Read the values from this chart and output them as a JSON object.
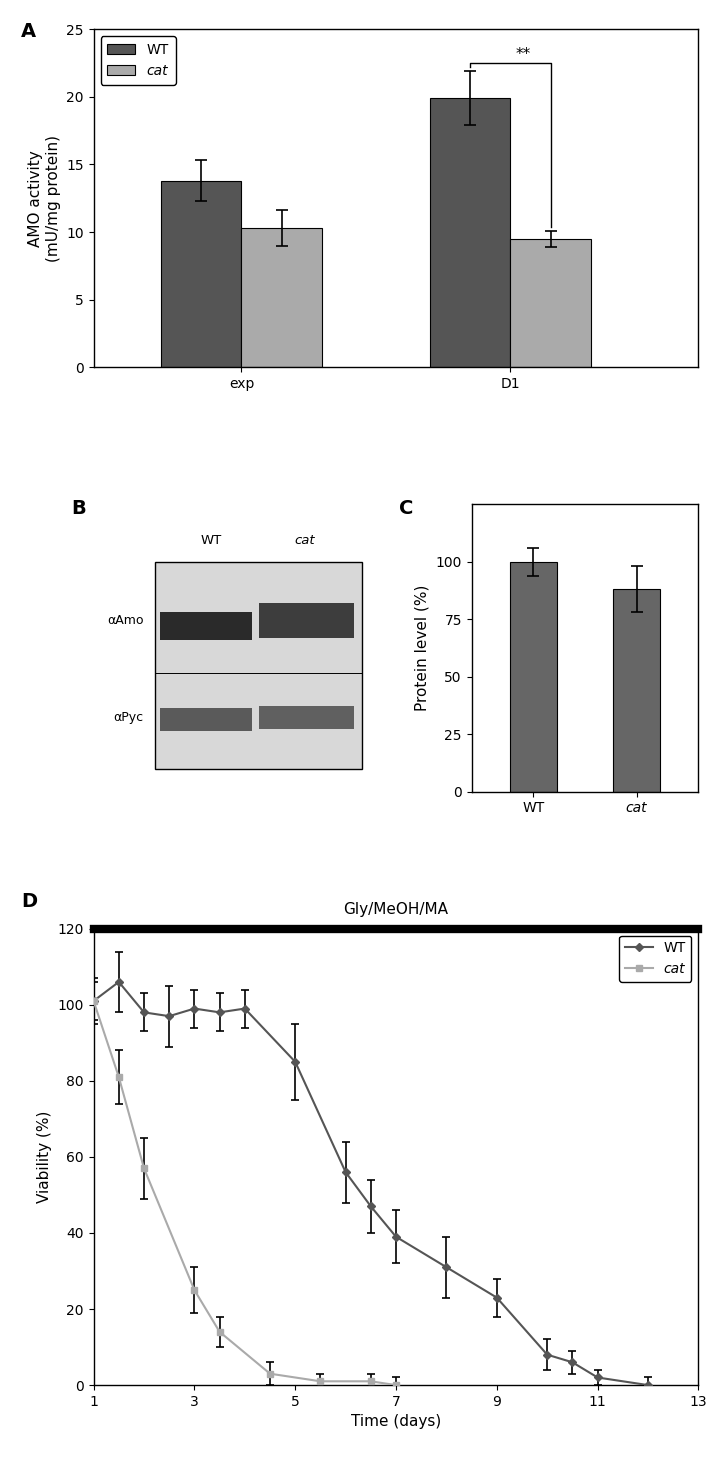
{
  "panel_A": {
    "categories": [
      "exp",
      "D1"
    ],
    "WT_values": [
      13.8,
      19.9
    ],
    "cat_values": [
      10.3,
      9.5
    ],
    "WT_errors": [
      1.5,
      2.0
    ],
    "cat_errors": [
      1.3,
      0.6
    ],
    "ylabel": "AMO activity\n(mU/mg protein)",
    "ylim": [
      0,
      25
    ],
    "yticks": [
      0,
      5,
      10,
      15,
      20,
      25
    ],
    "bar_width": 0.3,
    "WT_color": "#555555",
    "cat_color": "#aaaaaa"
  },
  "panel_C": {
    "categories": [
      "WT",
      "cat"
    ],
    "values": [
      100,
      88
    ],
    "errors": [
      6,
      10
    ],
    "ylabel": "Protein level (%)",
    "ylim": [
      0,
      125
    ],
    "yticks": [
      0,
      25,
      50,
      75,
      100
    ],
    "bar_color": "#666666",
    "bar_width": 0.45
  },
  "panel_D": {
    "WT_x": [
      1,
      1.5,
      2,
      2.5,
      3,
      3.5,
      4,
      5,
      6,
      6.5,
      7,
      8,
      9,
      10,
      10.5,
      11,
      12
    ],
    "WT_y": [
      101,
      106,
      98,
      97,
      99,
      98,
      99,
      85,
      56,
      47,
      39,
      31,
      23,
      8,
      6,
      2,
      0
    ],
    "WT_yerr": [
      5,
      8,
      5,
      8,
      5,
      5,
      5,
      10,
      8,
      7,
      7,
      8,
      5,
      4,
      3,
      2,
      2
    ],
    "cat_x": [
      1,
      1.5,
      2,
      3,
      3.5,
      4.5,
      5.5,
      6.5,
      7
    ],
    "cat_y": [
      101,
      81,
      57,
      25,
      14,
      3,
      1,
      1,
      0
    ],
    "cat_yerr": [
      6,
      7,
      8,
      6,
      4,
      3,
      2,
      2,
      2
    ],
    "WT_color": "#555555",
    "cat_color": "#aaaaaa",
    "ylabel": "Viability (%)",
    "xlabel": "Time (days)",
    "ylim": [
      0,
      120
    ],
    "xlim": [
      1,
      13
    ],
    "yticks": [
      0,
      20,
      40,
      60,
      80,
      100,
      120
    ],
    "xticks": [
      1,
      3,
      5,
      7,
      9,
      11,
      13
    ],
    "title": "Gly/MeOH/MA"
  },
  "label_fontsize": 14,
  "tick_fontsize": 10,
  "axis_label_fontsize": 11
}
